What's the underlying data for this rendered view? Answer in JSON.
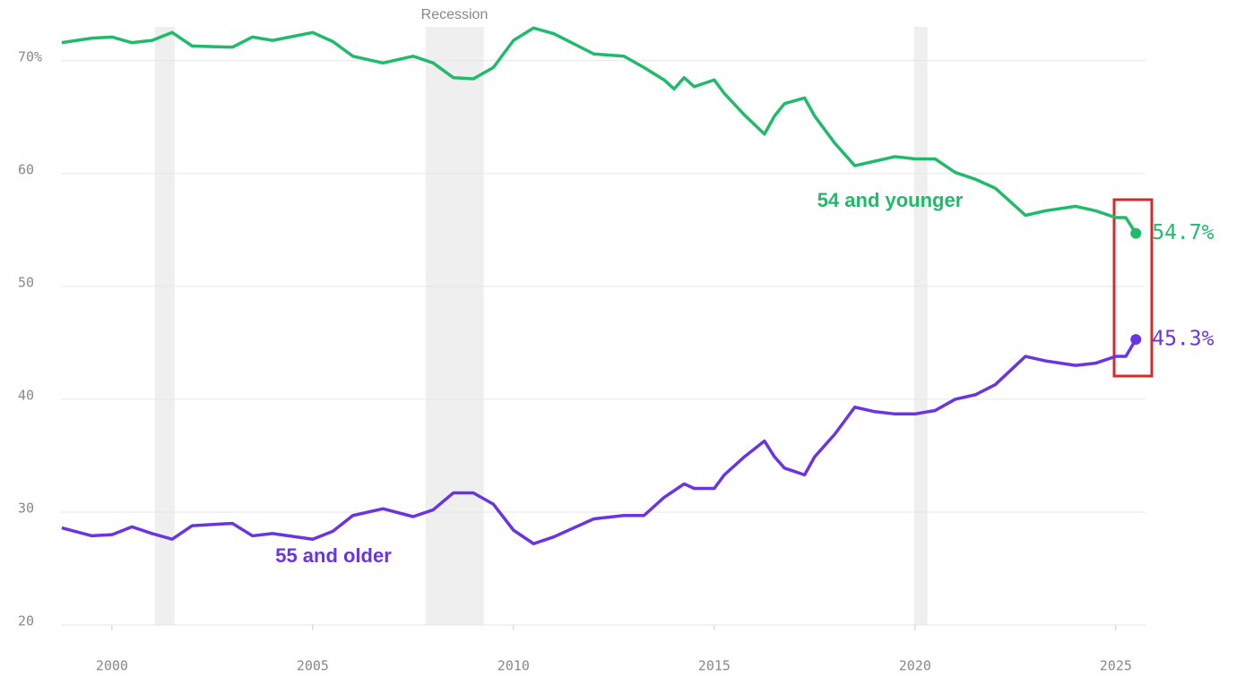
{
  "chart_data": {
    "type": "line",
    "band_label": "Recession",
    "recessions": [
      [
        2001.07,
        2001.56
      ],
      [
        2007.81,
        2009.26
      ],
      [
        2019.98,
        2020.31
      ]
    ],
    "x": [
      1998.75,
      1999.5,
      2000,
      2000.5,
      2001,
      2001.5,
      2002,
      2003,
      2003.5,
      2004,
      2005,
      2005.5,
      2006,
      2006.75,
      2007.5,
      2008,
      2008.5,
      2009,
      2009.5,
      2010,
      2010.5,
      2011,
      2012,
      2012.75,
      2013.25,
      2013.75,
      2014,
      2014.25,
      2014.5,
      2015,
      2015.25,
      2015.75,
      2016.25,
      2016.5,
      2016.75,
      2017.25,
      2017.5,
      2018,
      2018.5,
      2019,
      2019.5,
      2020,
      2020.5,
      2021,
      2021.5,
      2022,
      2022.75,
      2023.25,
      2024,
      2024.5,
      2025,
      2025.25,
      2025.5
    ],
    "series": [
      {
        "name": "54 and younger",
        "color": "#1fbb6b",
        "values": [
          71.6,
          72.0,
          72.1,
          71.6,
          71.8,
          72.5,
          71.3,
          71.2,
          72.1,
          71.8,
          72.5,
          71.7,
          70.4,
          69.8,
          70.4,
          69.8,
          68.5,
          68.4,
          69.4,
          71.8,
          72.9,
          72.4,
          70.6,
          70.4,
          69.4,
          68.3,
          67.5,
          68.5,
          67.7,
          68.3,
          67.1,
          65.2,
          63.5,
          65.1,
          66.2,
          66.7,
          65.1,
          62.7,
          60.7,
          61.1,
          61.5,
          61.3,
          61.3,
          60.1,
          59.5,
          58.7,
          56.3,
          56.7,
          57.1,
          56.7,
          56.1,
          56.1,
          54.7
        ],
        "value_labels": [
          null,
          null,
          null,
          null,
          null,
          null,
          null,
          null,
          null,
          null,
          null,
          null,
          null,
          null,
          null,
          null,
          null,
          null,
          null,
          null,
          null,
          null,
          null,
          null,
          null,
          null,
          null,
          null,
          null,
          null,
          null,
          null,
          null,
          null,
          null,
          null,
          null,
          null,
          null,
          null,
          null,
          null,
          null,
          null,
          null,
          null,
          null,
          null,
          null,
          null,
          null,
          null,
          "54.7%"
        ]
      },
      {
        "name": "55 and older",
        "color": "#6a35e0",
        "values": [
          28.6,
          27.9,
          28.0,
          28.7,
          28.1,
          27.6,
          28.8,
          29.0,
          27.9,
          28.1,
          27.6,
          28.3,
          29.7,
          30.3,
          29.6,
          30.2,
          31.7,
          31.7,
          30.7,
          28.4,
          27.2,
          27.8,
          29.4,
          29.7,
          29.7,
          31.3,
          31.9,
          32.5,
          32.1,
          32.1,
          33.3,
          34.9,
          36.3,
          34.9,
          33.9,
          33.3,
          34.9,
          36.9,
          39.3,
          38.9,
          38.7,
          38.7,
          39.0,
          40.0,
          40.4,
          41.3,
          43.8,
          43.4,
          43.0,
          43.2,
          43.8,
          43.8,
          45.3
        ],
        "value_labels": [
          null,
          null,
          null,
          null,
          null,
          null,
          null,
          null,
          null,
          null,
          null,
          null,
          null,
          null,
          null,
          null,
          null,
          null,
          null,
          null,
          null,
          null,
          null,
          null,
          null,
          null,
          null,
          null,
          null,
          null,
          null,
          null,
          null,
          null,
          null,
          null,
          null,
          null,
          null,
          null,
          null,
          null,
          null,
          null,
          null,
          null,
          null,
          null,
          null,
          null,
          null,
          null,
          "45.3%"
        ]
      }
    ],
    "xlim": [
      1998.73,
      2025.74
    ],
    "xticks": [
      2000,
      2005,
      2010,
      2015,
      2020,
      2025
    ],
    "ylim": [
      20,
      73
    ],
    "yticks": [
      20,
      30,
      40,
      50,
      60,
      {
        "value": 70,
        "label": "70%"
      }
    ],
    "grid": true
  }
}
